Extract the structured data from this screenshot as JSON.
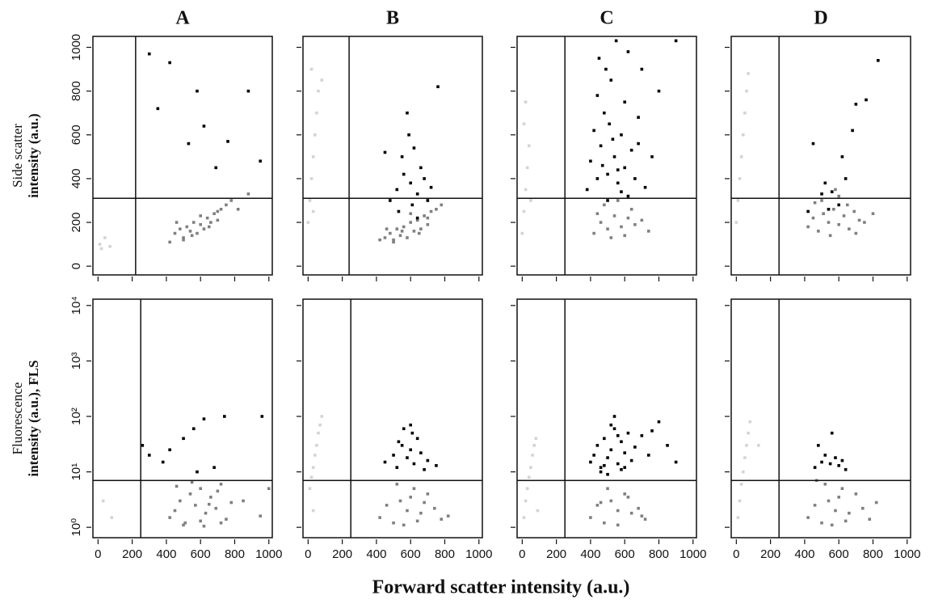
{
  "xlabel": "Forward scatter intensity (a.u.)",
  "chart_data": [
    {
      "type": "scatter",
      "title": "A",
      "ylabel": [
        "Side scatter",
        "intensity (a.u.)"
      ],
      "xlim": [
        -30,
        1020
      ],
      "ylim": [
        -40,
        1050
      ],
      "xticks": [
        0,
        200,
        400,
        600,
        800,
        1000
      ],
      "yticks": [
        0,
        200,
        400,
        600,
        800,
        1000
      ],
      "show_xtick_labels": false,
      "show_ytick_labels": true,
      "log_y": false,
      "gates": {
        "x": 220,
        "y": 310
      },
      "series": [
        {
          "color": "#d4d4d4",
          "x": [
            10,
            20,
            40,
            70
          ],
          "values": [
            100,
            80,
            130,
            90
          ]
        },
        {
          "color": "#808080",
          "x": [
            450,
            480,
            500,
            520,
            540,
            560,
            580,
            600,
            620,
            640,
            660,
            680,
            700,
            720,
            500,
            550,
            600,
            650,
            700,
            750,
            420,
            460,
            780,
            820,
            880
          ],
          "values": [
            150,
            170,
            130,
            180,
            160,
            200,
            150,
            190,
            170,
            220,
            200,
            240,
            210,
            260,
            120,
            140,
            230,
            180,
            250,
            280,
            110,
            200,
            300,
            260,
            330
          ]
        },
        {
          "color": "#000000",
          "x": [
            300,
            350,
            420,
            580,
            690,
            760,
            880,
            950,
            620,
            530
          ],
          "values": [
            970,
            720,
            930,
            800,
            450,
            570,
            800,
            480,
            640,
            560
          ]
        }
      ]
    },
    {
      "type": "scatter",
      "title": "B",
      "xlim": [
        -30,
        1020
      ],
      "ylim": [
        -40,
        1050
      ],
      "xticks": [
        0,
        200,
        400,
        600,
        800,
        1000
      ],
      "yticks": [
        0,
        200,
        400,
        600,
        800,
        1000
      ],
      "show_xtick_labels": false,
      "show_ytick_labels": false,
      "log_y": false,
      "gates": {
        "x": 240,
        "y": 310
      },
      "series": [
        {
          "color": "#d4d4d4",
          "x": [
            0,
            10,
            20,
            30,
            40,
            50,
            60,
            20,
            30,
            80
          ],
          "values": [
            200,
            300,
            400,
            500,
            600,
            700,
            800,
            900,
            250,
            850
          ]
        },
        {
          "color": "#808080",
          "x": [
            450,
            480,
            500,
            520,
            540,
            560,
            580,
            600,
            620,
            640,
            660,
            680,
            700,
            720,
            500,
            550,
            600,
            650,
            700,
            750,
            420,
            460,
            780
          ],
          "values": [
            130,
            150,
            120,
            170,
            140,
            180,
            130,
            200,
            160,
            210,
            170,
            230,
            190,
            250,
            110,
            160,
            240,
            150,
            220,
            260,
            120,
            170,
            280
          ]
        },
        {
          "color": "#000000",
          "x": [
            480,
            520,
            560,
            600,
            640,
            680,
            550,
            620,
            700,
            590,
            450,
            530,
            610,
            660,
            720,
            580,
            640,
            760
          ],
          "values": [
            300,
            350,
            420,
            380,
            330,
            400,
            500,
            540,
            300,
            600,
            520,
            250,
            280,
            450,
            360,
            700,
            220,
            820
          ]
        }
      ]
    },
    {
      "type": "scatter",
      "title": "C",
      "xlim": [
        -30,
        1020
      ],
      "ylim": [
        -40,
        1050
      ],
      "xticks": [
        0,
        200,
        400,
        600,
        800,
        1000
      ],
      "yticks": [
        0,
        200,
        400,
        600,
        800,
        1000
      ],
      "show_xtick_labels": false,
      "show_ytick_labels": false,
      "log_y": false,
      "gates": {
        "x": 250,
        "y": 310
      },
      "series": [
        {
          "color": "#d4d4d4",
          "x": [
            0,
            10,
            20,
            30,
            40,
            10,
            20,
            50
          ],
          "values": [
            150,
            250,
            350,
            450,
            550,
            650,
            750,
            300
          ]
        },
        {
          "color": "#808080",
          "x": [
            420,
            460,
            500,
            540,
            580,
            620,
            660,
            480,
            520,
            560,
            600,
            640,
            440,
            700,
            740
          ],
          "values": [
            150,
            200,
            170,
            230,
            180,
            220,
            190,
            280,
            130,
            300,
            140,
            260,
            240,
            210,
            160
          ]
        },
        {
          "color": "#000000",
          "x": [
            380,
            400,
            420,
            440,
            460,
            480,
            500,
            520,
            540,
            560,
            580,
            600,
            620,
            640,
            660,
            680,
            700,
            720,
            760,
            800,
            450,
            500,
            550,
            600,
            470,
            530,
            580,
            510,
            490,
            560,
            620,
            440,
            680,
            900
          ],
          "values": [
            350,
            480,
            620,
            400,
            550,
            700,
            420,
            850,
            500,
            380,
            600,
            450,
            320,
            530,
            400,
            680,
            900,
            360,
            500,
            800,
            950,
            300,
            1030,
            750,
            460,
            580,
            340,
            650,
            900,
            440,
            980,
            780,
            560,
            1030
          ]
        }
      ]
    },
    {
      "type": "scatter",
      "title": "D",
      "xlim": [
        -30,
        1020
      ],
      "ylim": [
        -40,
        1050
      ],
      "xticks": [
        0,
        200,
        400,
        600,
        800,
        1000
      ],
      "yticks": [
        0,
        200,
        400,
        600,
        800,
        1000
      ],
      "show_xtick_labels": false,
      "show_ytick_labels": false,
      "log_y": false,
      "gates": {
        "x": 250,
        "y": 310
      },
      "series": [
        {
          "color": "#d4d4d4",
          "x": [
            0,
            10,
            20,
            30,
            40,
            50,
            60,
            70
          ],
          "values": [
            200,
            300,
            400,
            500,
            600,
            700,
            800,
            880
          ]
        },
        {
          "color": "#808080",
          "x": [
            420,
            450,
            480,
            510,
            540,
            570,
            600,
            630,
            660,
            690,
            720,
            500,
            550,
            600,
            650,
            700,
            460,
            750,
            800,
            580
          ],
          "values": [
            180,
            220,
            160,
            240,
            200,
            260,
            190,
            230,
            170,
            250,
            210,
            300,
            140,
            320,
            280,
            150,
            290,
            200,
            240,
            350
          ]
        },
        {
          "color": "#000000",
          "x": [
            420,
            450,
            520,
            560,
            600,
            640,
            680,
            500,
            700,
            760,
            620,
            540,
            830
          ],
          "values": [
            250,
            560,
            380,
            340,
            280,
            400,
            620,
            330,
            740,
            760,
            500,
            260,
            940
          ]
        }
      ]
    },
    {
      "type": "scatter",
      "ylabel": [
        "Fluorescence",
        "intensity (a.u.), FLS"
      ],
      "xlim": [
        -30,
        1020
      ],
      "ylim": [
        0.65,
        13000
      ],
      "xticks": [
        0,
        200,
        400,
        600,
        800,
        1000
      ],
      "yticks": [
        {
          "value": 1,
          "label": "10⁰"
        },
        {
          "value": 10,
          "label": "10¹"
        },
        {
          "value": 100,
          "label": "10²"
        },
        {
          "value": 1000,
          "label": "10³"
        },
        {
          "value": 10000,
          "label": "10⁴"
        }
      ],
      "show_xtick_labels": true,
      "show_ytick_labels": true,
      "log_y": true,
      "gates": {
        "x": 250,
        "y": 7
      },
      "series": [
        {
          "color": "#d4d4d4",
          "x": [
            30,
            80
          ],
          "values": [
            3,
            1.5
          ]
        },
        {
          "color": "#808080",
          "x": [
            420,
            450,
            480,
            510,
            540,
            570,
            600,
            630,
            660,
            690,
            720,
            750,
            780,
            500,
            550,
            600,
            650,
            700,
            850,
            950,
            1000,
            460,
            620,
            720
          ],
          "values": [
            1.5,
            2,
            3,
            1.2,
            4,
            2.5,
            5,
            1.8,
            3.5,
            2.2,
            6,
            1.4,
            2.8,
            1.1,
            6.5,
            1.3,
            2.6,
            4.5,
            3,
            1.6,
            5,
            5.5,
            1.05,
            1.2
          ]
        },
        {
          "color": "#000000",
          "x": [
            260,
            300,
            380,
            420,
            500,
            560,
            620,
            680,
            740,
            960,
            580
          ],
          "values": [
            30,
            20,
            15,
            25,
            40,
            60,
            90,
            12,
            100,
            100,
            10
          ]
        }
      ]
    },
    {
      "type": "scatter",
      "xlim": [
        -30,
        1020
      ],
      "ylim": [
        0.65,
        13000
      ],
      "xticks": [
        0,
        200,
        400,
        600,
        800,
        1000
      ],
      "yticks": [
        1,
        10,
        100,
        1000,
        10000
      ],
      "show_xtick_labels": true,
      "show_ytick_labels": false,
      "log_y": true,
      "gates": {
        "x": 250,
        "y": 7
      },
      "series": [
        {
          "color": "#d4d4d4",
          "x": [
            10,
            20,
            30,
            40,
            50,
            60,
            70,
            80,
            30
          ],
          "values": [
            5,
            8,
            12,
            20,
            30,
            50,
            70,
            100,
            2
          ]
        },
        {
          "color": "#808080",
          "x": [
            420,
            460,
            500,
            540,
            580,
            620,
            660,
            700,
            740,
            780,
            520,
            560,
            600,
            640,
            680,
            820
          ],
          "values": [
            1.5,
            2.5,
            1.2,
            3,
            2,
            5,
            1.8,
            4,
            2.2,
            1.4,
            6,
            1.1,
            3.5,
            1.3,
            2.8,
            1.6
          ]
        },
        {
          "color": "#000000",
          "x": [
            450,
            500,
            520,
            550,
            580,
            600,
            620,
            640,
            660,
            700,
            560,
            610,
            530,
            680,
            750,
            600
          ],
          "values": [
            15,
            20,
            12,
            30,
            18,
            25,
            14,
            40,
            22,
            16,
            60,
            50,
            35,
            11,
            13,
            70
          ]
        }
      ]
    },
    {
      "type": "scatter",
      "xlim": [
        -30,
        1020
      ],
      "ylim": [
        0.65,
        13000
      ],
      "xticks": [
        0,
        200,
        400,
        600,
        800,
        1000
      ],
      "yticks": [
        1,
        10,
        100,
        1000,
        10000
      ],
      "show_xtick_labels": true,
      "show_ytick_labels": false,
      "log_y": true,
      "gates": {
        "x": 250,
        "y": 7
      },
      "series": [
        {
          "color": "#d4d4d4",
          "x": [
            10,
            20,
            30,
            40,
            50,
            60,
            70,
            80,
            90
          ],
          "values": [
            1.5,
            3,
            5,
            8,
            12,
            20,
            30,
            40,
            2
          ]
        },
        {
          "color": "#808080",
          "x": [
            400,
            440,
            480,
            520,
            560,
            600,
            640,
            680,
            720,
            500,
            560,
            620,
            460,
            700
          ],
          "values": [
            1.5,
            2.5,
            1.2,
            3,
            2,
            4,
            1.8,
            2.2,
            1.4,
            5,
            1.1,
            3.5,
            2.8,
            1.6
          ]
        },
        {
          "color": "#000000",
          "x": [
            400,
            420,
            440,
            460,
            480,
            500,
            520,
            540,
            560,
            580,
            600,
            620,
            640,
            660,
            700,
            740,
            800,
            850,
            460,
            520,
            580,
            480,
            540,
            600,
            500,
            560,
            760,
            900
          ],
          "values": [
            15,
            20,
            30,
            12,
            40,
            18,
            25,
            60,
            14,
            35,
            22,
            50,
            16,
            28,
            45,
            20,
            80,
            30,
            10,
            70,
            11,
            13,
            100,
            12,
            9,
            45,
            55,
            15
          ]
        }
      ]
    },
    {
      "type": "scatter",
      "xlim": [
        -30,
        1020
      ],
      "ylim": [
        0.65,
        13000
      ],
      "xticks": [
        0,
        200,
        400,
        600,
        800,
        1000
      ],
      "yticks": [
        1,
        10,
        100,
        1000,
        10000
      ],
      "show_xtick_labels": true,
      "show_ytick_labels": false,
      "log_y": true,
      "gates": {
        "x": 250,
        "y": 7
      },
      "series": [
        {
          "color": "#d4d4d4",
          "x": [
            10,
            20,
            30,
            40,
            50,
            60,
            70,
            80,
            130
          ],
          "values": [
            1.5,
            3,
            6,
            10,
            18,
            30,
            50,
            80,
            30
          ]
        },
        {
          "color": "#808080",
          "x": [
            420,
            460,
            500,
            540,
            580,
            620,
            660,
            700,
            740,
            780,
            520,
            560,
            600,
            640,
            820,
            470
          ],
          "values": [
            1.5,
            2.5,
            1.2,
            3,
            2,
            5,
            1.8,
            4,
            2.2,
            1.4,
            6,
            1.1,
            3.5,
            1.3,
            2.8,
            7
          ]
        },
        {
          "color": "#000000",
          "x": [
            460,
            500,
            520,
            550,
            580,
            600,
            620,
            480,
            560,
            640
          ],
          "values": [
            12,
            15,
            20,
            14,
            18,
            13,
            16,
            30,
            50,
            11
          ]
        }
      ]
    }
  ]
}
